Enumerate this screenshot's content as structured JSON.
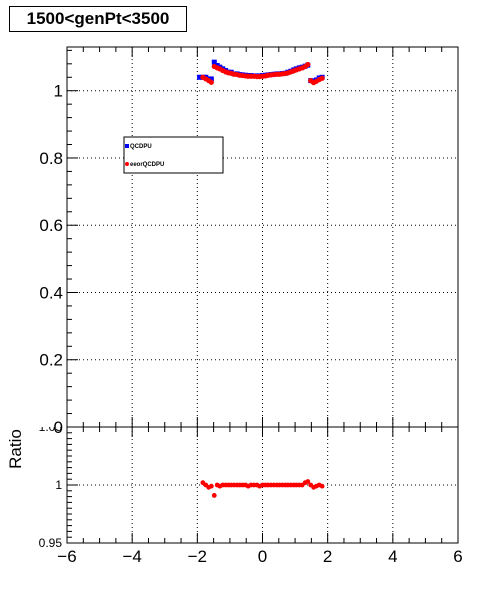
{
  "chart_data": [
    {
      "type": "scatter",
      "title": "1500<genPt<3500",
      "xlabel": "",
      "ylabel": "",
      "xlim": [
        -6,
        6
      ],
      "ylim": [
        0,
        1.13
      ],
      "grid": true,
      "legend_position": "upper-left-inside",
      "xticks": [
        "−6",
        "−4",
        "−2",
        "0",
        "2",
        "4",
        "6"
      ],
      "xtick_values": [
        -6,
        -4,
        -2,
        0,
        2,
        4,
        6
      ],
      "yticks": [
        "0",
        "0.2",
        "0.4",
        "0.6",
        "0.8",
        "1"
      ],
      "ytick_values": [
        0,
        0.2,
        0.4,
        0.6,
        0.8,
        1
      ],
      "series": [
        {
          "name": "QCDPU",
          "color": "#0000ff",
          "marker": "square",
          "x": [
            -1.93,
            -1.83,
            -1.74,
            -1.65,
            -1.57,
            -1.48,
            -1.39,
            -1.31,
            -1.22,
            -1.13,
            -1.04,
            -0.96,
            -0.87,
            -0.78,
            -0.7,
            -0.61,
            -0.52,
            -0.44,
            -0.35,
            -0.26,
            -0.17,
            -0.09,
            0.0,
            0.09,
            0.17,
            0.26,
            0.35,
            0.44,
            0.52,
            0.61,
            0.7,
            0.78,
            0.87,
            0.96,
            1.04,
            1.13,
            1.22,
            1.31,
            1.39,
            1.48,
            1.57,
            1.65,
            1.74,
            1.83
          ],
          "y": [
            1.04,
            1.04,
            1.04,
            1.035,
            1.035,
            1.085,
            1.075,
            1.07,
            1.065,
            1.06,
            1.055,
            1.055,
            1.05,
            1.05,
            1.048,
            1.047,
            1.046,
            1.045,
            1.045,
            1.044,
            1.044,
            1.044,
            1.045,
            1.046,
            1.047,
            1.048,
            1.049,
            1.05,
            1.05,
            1.051,
            1.052,
            1.055,
            1.058,
            1.062,
            1.065,
            1.068,
            1.07,
            1.073,
            1.076,
            1.03,
            1.028,
            1.032,
            1.038,
            1.04
          ]
        },
        {
          "name": "eeorQCDPU",
          "color": "#ff0000",
          "marker": "circle",
          "x": [
            -1.83,
            -1.74,
            -1.65,
            -1.57,
            -1.48,
            -1.39,
            -1.31,
            -1.22,
            -1.13,
            -1.04,
            -0.96,
            -0.87,
            -0.78,
            -0.7,
            -0.61,
            -0.52,
            -0.44,
            -0.35,
            -0.26,
            -0.17,
            -0.09,
            0.0,
            0.09,
            0.17,
            0.26,
            0.35,
            0.44,
            0.52,
            0.61,
            0.7,
            0.78,
            0.87,
            0.96,
            1.04,
            1.13,
            1.22,
            1.31,
            1.39,
            1.48,
            1.57,
            1.65,
            1.74,
            1.83
          ],
          "y": [
            1.04,
            1.035,
            1.03,
            1.025,
            1.072,
            1.068,
            1.065,
            1.06,
            1.056,
            1.053,
            1.052,
            1.049,
            1.048,
            1.046,
            1.045,
            1.044,
            1.043,
            1.043,
            1.043,
            1.042,
            1.042,
            1.043,
            1.044,
            1.046,
            1.047,
            1.048,
            1.049,
            1.049,
            1.05,
            1.051,
            1.053,
            1.056,
            1.059,
            1.062,
            1.065,
            1.068,
            1.072,
            1.078,
            1.03,
            1.024,
            1.028,
            1.033,
            1.037
          ]
        }
      ]
    },
    {
      "type": "scatter",
      "xlabel": "",
      "ylabel": "Ratio",
      "xlim": [
        -6,
        6
      ],
      "ylim": [
        0.95,
        1.05
      ],
      "grid": true,
      "xticks": [
        "−6",
        "−4",
        "−2",
        "0",
        "2",
        "4",
        "6"
      ],
      "xtick_values": [
        -6,
        -4,
        -2,
        0,
        2,
        4,
        6
      ],
      "yticks": [
        "0.95",
        "1",
        "1.05"
      ],
      "ytick_values": [
        0.95,
        1.0,
        1.05
      ],
      "series": [
        {
          "color": "#ff0000",
          "marker": "circle",
          "x": [
            -1.83,
            -1.74,
            -1.65,
            -1.57,
            -1.48,
            -1.39,
            -1.31,
            -1.22,
            -1.13,
            -1.04,
            -0.96,
            -0.87,
            -0.78,
            -0.7,
            -0.61,
            -0.52,
            -0.44,
            -0.35,
            -0.26,
            -0.17,
            -0.09,
            0.0,
            0.09,
            0.17,
            0.26,
            0.35,
            0.44,
            0.52,
            0.61,
            0.7,
            0.78,
            0.87,
            0.96,
            1.04,
            1.13,
            1.22,
            1.31,
            1.39,
            1.48,
            1.57,
            1.65,
            1.74,
            1.83
          ],
          "y": [
            1.002,
            1.0,
            0.998,
            0.999,
            0.991,
            1.0,
            0.999,
            1.0,
            1.0,
            1.0,
            1.0,
            1.0,
            1.0,
            1.0,
            1.0,
            1.0,
            0.999,
            1.0,
            1.0,
            1.0,
            0.999,
            1.0,
            1.0,
            1.0,
            1.0,
            1.0,
            1.0,
            1.0,
            1.0,
            1.0,
            1.0,
            1.0,
            1.0,
            1.0,
            1.0,
            1.0,
            1.002,
            1.003,
            1.0,
            0.998,
            0.999,
            1.0,
            0.999
          ]
        }
      ]
    }
  ]
}
